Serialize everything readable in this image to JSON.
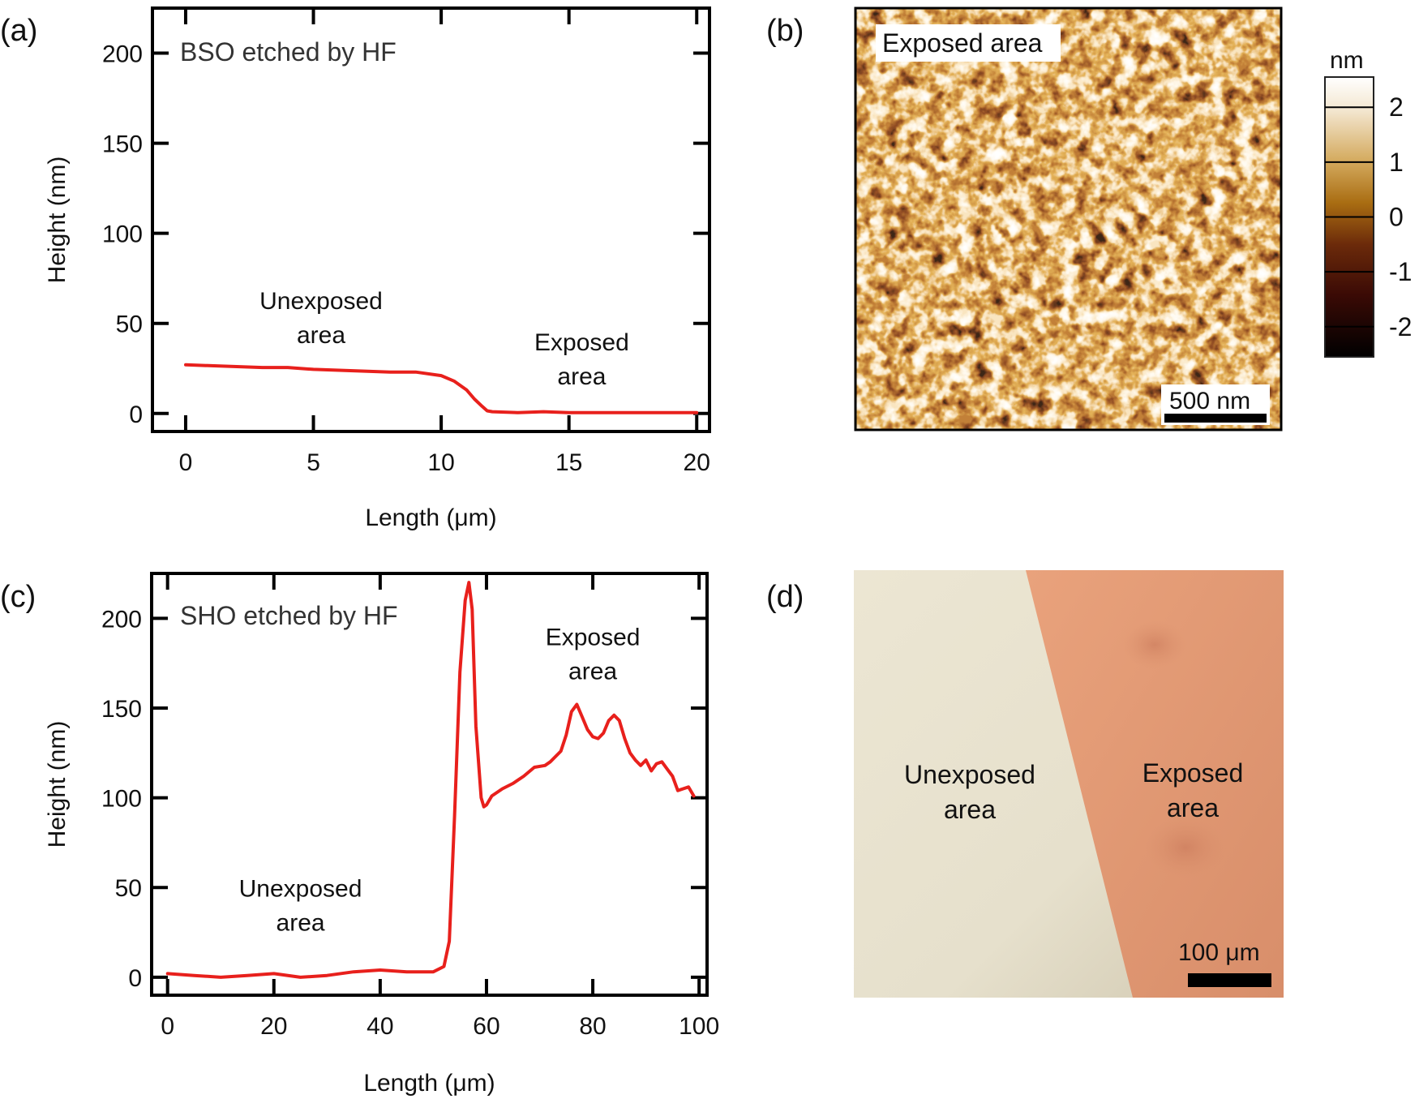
{
  "panels": {
    "a": "(a)",
    "b": "(b)",
    "c": "(c)",
    "d": "(d)"
  },
  "chart_data": [
    {
      "type": "line",
      "id": "a",
      "title": "BSO etched by HF",
      "xlabel": "Length (μm)",
      "ylabel": "Height (nm)",
      "xlim": [
        -1.3,
        20.5
      ],
      "ylim": [
        -10,
        225
      ],
      "xticks": [
        0,
        5,
        10,
        15,
        20
      ],
      "yticks": [
        0,
        50,
        100,
        150,
        200
      ],
      "annotations": [
        {
          "lines": [
            "Unexposed",
            "area"
          ],
          "x": 5.3,
          "y": 58
        },
        {
          "lines": [
            "Exposed",
            "area"
          ],
          "x": 15.5,
          "y": 35
        }
      ],
      "series": [
        {
          "name": "BSO profile",
          "color": "#e8201c",
          "x": [
            0,
            1,
            2,
            3,
            4,
            5,
            6,
            7,
            8,
            9,
            10,
            10.5,
            11,
            11.3,
            11.6,
            11.8,
            12,
            13,
            14,
            15,
            16,
            17,
            18,
            19,
            20
          ],
          "y": [
            27,
            26.5,
            26,
            25.5,
            25.5,
            24.5,
            24,
            23.5,
            23,
            23,
            21,
            18,
            13,
            8,
            4,
            1.5,
            1,
            0.5,
            1,
            0.5,
            0.5,
            0.5,
            0.5,
            0.5,
            0.5
          ]
        }
      ]
    },
    {
      "type": "line",
      "id": "c",
      "title": "SHO etched by HF",
      "xlabel": "Length (μm)",
      "ylabel": "Height (nm)",
      "xlim": [
        -3,
        101.5
      ],
      "ylim": [
        -10,
        225
      ],
      "xticks": [
        0,
        20,
        40,
        60,
        80,
        100
      ],
      "yticks": [
        0,
        50,
        100,
        150,
        200
      ],
      "annotations": [
        {
          "lines": [
            "Unexposed",
            "area"
          ],
          "x": 25,
          "y": 45
        },
        {
          "lines": [
            "Exposed",
            "area"
          ],
          "x": 80,
          "y": 185
        }
      ],
      "series": [
        {
          "name": "SHO profile",
          "color": "#e8201c",
          "x": [
            0,
            5,
            10,
            15,
            20,
            25,
            30,
            35,
            40,
            45,
            50,
            52,
            53,
            54,
            55,
            56,
            56.7,
            57.3,
            58,
            59,
            59.5,
            60,
            61,
            63,
            65,
            67,
            69,
            71,
            72,
            74,
            75,
            76,
            77,
            78,
            79,
            80,
            81,
            82,
            83,
            84,
            85,
            86,
            87,
            88,
            89,
            90,
            91,
            92,
            93,
            94,
            95,
            96,
            97,
            98,
            99
          ],
          "y": [
            2,
            1,
            0,
            1,
            2,
            0,
            1,
            3,
            4,
            3,
            3,
            6,
            20,
            90,
            170,
            210,
            220,
            205,
            140,
            100,
            95,
            96,
            101,
            105,
            108,
            112,
            117,
            118,
            120,
            126,
            135,
            148,
            152,
            145,
            138,
            134,
            133,
            136,
            143,
            146,
            143,
            133,
            125,
            121,
            118,
            121,
            115,
            119,
            120,
            116,
            112,
            104,
            105,
            106,
            101
          ]
        }
      ]
    }
  ],
  "afm": {
    "label": "Exposed area",
    "scale_label": "500 nm",
    "colorbar_title": "nm",
    "colorbar_ticks": [
      "2",
      "1",
      "0",
      "-1",
      "-2"
    ]
  },
  "optical": {
    "unexposed_lines": [
      "Unexposed",
      "area"
    ],
    "exposed_lines": [
      "Exposed",
      "area"
    ],
    "scale_label": "100 μm"
  }
}
